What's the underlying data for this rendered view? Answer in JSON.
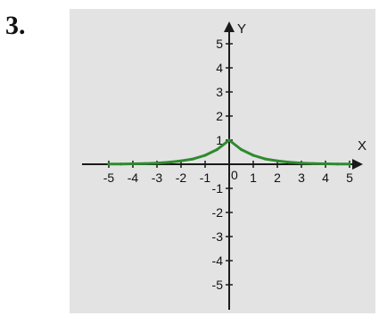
{
  "problem_number": "3.",
  "colors": {
    "panel": "#e3e3e3",
    "axis": "#1a1a1a",
    "curve": "#2f8a2f",
    "text": "#111111"
  },
  "chart_data": {
    "type": "line",
    "title": "",
    "xlabel": "X",
    "ylabel": "Y",
    "xlim": [
      -5.8,
      5.8
    ],
    "ylim": [
      -5.8,
      5.8
    ],
    "grid": false,
    "x_ticks": [
      -5,
      -4,
      -3,
      -2,
      -1,
      1,
      2,
      3,
      4,
      5
    ],
    "x_tick_labels": [
      "-5",
      "-4",
      "-3",
      "-2",
      "-1",
      "1",
      "2",
      "3",
      "4",
      "5"
    ],
    "y_ticks": [
      -5,
      -4,
      -3,
      -2,
      -1,
      1,
      2,
      3,
      4,
      5
    ],
    "y_tick_labels": [
      "-5",
      "-4",
      "-3",
      "-2",
      "-1",
      "1",
      "2",
      "3",
      "4",
      "5"
    ],
    "origin_label": "0",
    "series": [
      {
        "x": [
          -5,
          -4.5,
          -4,
          -3.5,
          -3,
          -2.5,
          -2,
          -1.5,
          -1,
          -0.5,
          0,
          0.5,
          1,
          1.5,
          2,
          2.5,
          3,
          3.5,
          4,
          4.5,
          5
        ],
        "y": [
          0.01,
          0.01,
          0.02,
          0.03,
          0.05,
          0.08,
          0.14,
          0.22,
          0.37,
          0.61,
          1.0,
          0.61,
          0.37,
          0.22,
          0.14,
          0.08,
          0.05,
          0.03,
          0.02,
          0.01,
          0.01
        ]
      }
    ]
  }
}
